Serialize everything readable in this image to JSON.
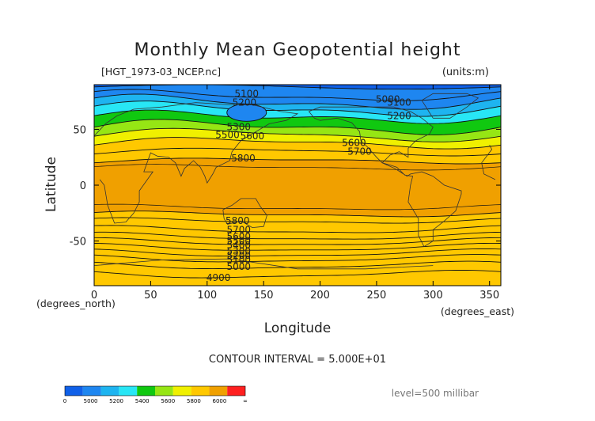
{
  "chart_data": {
    "type": "heatmap",
    "title": "Monthly Mean Geopotential height",
    "file_label": "[HGT_1973-03_NCEP.nc]",
    "units_label": "(units:m)",
    "xlabel": "Longitude",
    "ylabel": "Latitude",
    "x_units_label": "(degrees_east)",
    "y_units_label": "(degrees_north)",
    "xlim": [
      0,
      360
    ],
    "ylim": [
      -90,
      90
    ],
    "x_ticks": [
      "0",
      "50",
      "100",
      "150",
      "200",
      "250",
      "300",
      "350"
    ],
    "y_ticks": [
      "-50",
      "0",
      "50"
    ],
    "contour_interval": "CONTOUR INTERVAL = 5.000E+01",
    "level": "level=500 millibar",
    "colorbar": {
      "labels": [
        "0",
        "5000",
        "5200",
        "5400",
        "5600",
        "5800",
        "6000",
        "∞"
      ],
      "colors": [
        "#1060e8",
        "#1e86f0",
        "#1eb4f0",
        "#28e6f5",
        "#10c810",
        "#96e614",
        "#f0f000",
        "#ffc800",
        "#f0a000",
        "#ff2020"
      ]
    },
    "contour_labels": [
      {
        "text": "5100",
        "lon": 135,
        "lat": 82
      },
      {
        "text": "5200",
        "lon": 133,
        "lat": 74
      },
      {
        "text": "5300",
        "lon": 128,
        "lat": 52
      },
      {
        "text": "5500",
        "lon": 118,
        "lat": 45
      },
      {
        "text": "5600",
        "lon": 140,
        "lat": 44
      },
      {
        "text": "5800",
        "lon": 132,
        "lat": 24
      },
      {
        "text": "5000",
        "lon": 260,
        "lat": 77
      },
      {
        "text": "5100",
        "lon": 270,
        "lat": 74
      },
      {
        "text": "5200",
        "lon": 270,
        "lat": 62
      },
      {
        "text": "5600",
        "lon": 230,
        "lat": 38
      },
      {
        "text": "5700",
        "lon": 235,
        "lat": 30
      },
      {
        "text": "5800",
        "lon": 127,
        "lat": -32
      },
      {
        "text": "5700",
        "lon": 128,
        "lat": -40
      },
      {
        "text": "5600",
        "lon": 128,
        "lat": -46
      },
      {
        "text": "5500",
        "lon": 128,
        "lat": -50
      },
      {
        "text": "5400",
        "lon": 128,
        "lat": -54
      },
      {
        "text": "5300",
        "lon": 128,
        "lat": -59
      },
      {
        "text": "5200",
        "lon": 128,
        "lat": -63
      },
      {
        "text": "5100",
        "lon": 128,
        "lat": -67
      },
      {
        "text": "5000",
        "lon": 128,
        "lat": -73
      },
      {
        "text": "4900",
        "lon": 110,
        "lat": -83
      }
    ]
  }
}
